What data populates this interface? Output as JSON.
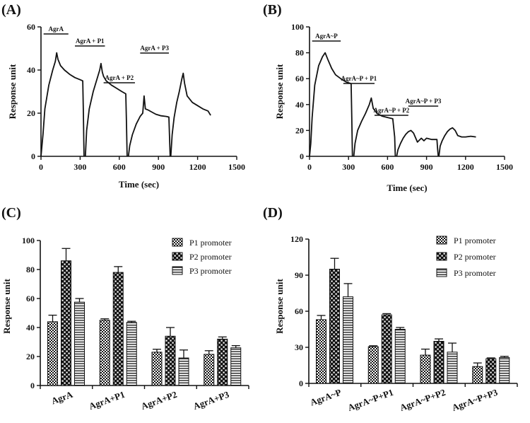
{
  "panels": {
    "a": "(A)",
    "b": "(B)",
    "c": "(C)",
    "d": "(D)"
  },
  "chart_data": [
    {
      "id": "A",
      "type": "line",
      "title": "",
      "xlabel": "Time (sec)",
      "ylabel": "Response unit",
      "xlim": [
        0,
        1500
      ],
      "ylim": [
        0,
        60
      ],
      "xticks": [
        0,
        300,
        600,
        900,
        1200,
        1500
      ],
      "yticks": [
        0,
        20,
        40,
        60
      ],
      "grid": false,
      "annotations": [
        "AgrA",
        "AgrA + P1",
        "AgrA + P2",
        "AgrA + P3"
      ],
      "segments": [
        {
          "name": "AgrA",
          "x": [
            0,
            15,
            30,
            60,
            90,
            110,
            120,
            130,
            150,
            180,
            220,
            260,
            300,
            320,
            325,
            330
          ],
          "y": [
            0,
            10,
            22,
            33,
            40,
            44,
            48,
            45,
            42,
            40,
            38,
            36.5,
            35.5,
            35,
            20,
            0
          ]
        },
        {
          "name": "AgrA + P1",
          "x": [
            340,
            350,
            370,
            400,
            430,
            450,
            460,
            470,
            480,
            500,
            540,
            580,
            620,
            650,
            655,
            660
          ],
          "y": [
            0,
            12,
            22,
            30,
            36,
            40,
            43,
            39,
            37,
            35,
            33,
            31.5,
            30,
            29,
            15,
            0
          ]
        },
        {
          "name": "AgrA + P2",
          "x": [
            670,
            680,
            700,
            730,
            760,
            780,
            790,
            800,
            820,
            850,
            880,
            920,
            960,
            980,
            985,
            990
          ],
          "y": [
            0,
            5,
            10,
            15,
            18.5,
            20,
            28,
            22,
            21.5,
            20.5,
            19.5,
            18.8,
            18.5,
            18.2,
            9,
            0
          ]
        },
        {
          "name": "AgrA + P3",
          "x": [
            995,
            1005,
            1020,
            1040,
            1060,
            1080,
            1090,
            1100,
            1120,
            1160,
            1200,
            1240,
            1280,
            1300
          ],
          "y": [
            0,
            10,
            18,
            25,
            30,
            36,
            38.5,
            34,
            28,
            25,
            23.5,
            22,
            21,
            19
          ]
        }
      ]
    },
    {
      "id": "B",
      "type": "line",
      "title": "",
      "xlabel": "Time (sec)",
      "ylabel": "Response unit",
      "xlim": [
        0,
        1500
      ],
      "ylim": [
        0,
        100
      ],
      "xticks": [
        0,
        300,
        600,
        900,
        1200,
        1500
      ],
      "yticks": [
        0,
        20,
        40,
        60,
        80,
        100
      ],
      "grid": false,
      "annotations": [
        "AgrA~P",
        "AgrA~P + P1",
        "AgrA~P + P2",
        "AgrA~P + P3"
      ],
      "segments": [
        {
          "name": "AgrA~P",
          "x": [
            0,
            10,
            20,
            40,
            70,
            100,
            120,
            140,
            170,
            200,
            240,
            280,
            310,
            320,
            325,
            330
          ],
          "y": [
            0,
            10,
            30,
            55,
            70,
            77,
            80,
            75,
            68,
            63,
            60,
            57.5,
            56.5,
            56,
            30,
            0
          ]
        },
        {
          "name": "AgrA~P + P1",
          "x": [
            340,
            350,
            370,
            400,
            430,
            460,
            475,
            490,
            520,
            560,
            600,
            640,
            655,
            660
          ],
          "y": [
            0,
            10,
            20,
            27,
            33,
            40,
            45,
            37,
            33,
            31,
            30,
            29,
            15,
            0
          ]
        },
        {
          "name": "AgrA~P + P2",
          "x": [
            670,
            680,
            700,
            720,
            740,
            760,
            780,
            800,
            830,
            860,
            880,
            900,
            940,
            980,
            985,
            990
          ],
          "y": [
            0,
            5,
            10,
            14,
            17,
            19,
            20,
            18,
            11,
            14,
            12,
            14,
            13,
            13,
            6,
            0
          ]
        },
        {
          "name": "AgrA~P + P3",
          "x": [
            995,
            1005,
            1020,
            1040,
            1060,
            1080,
            1100,
            1120,
            1140,
            1170,
            1200,
            1240,
            1280
          ],
          "y": [
            0,
            8,
            12,
            16,
            19,
            21,
            22,
            20,
            16,
            15,
            15,
            15.5,
            15
          ]
        }
      ]
    },
    {
      "id": "C",
      "type": "bar",
      "title": "",
      "xlabel": "",
      "ylabel": "Response unit",
      "ylim": [
        0,
        100
      ],
      "yticks": [
        0,
        20,
        40,
        60,
        80,
        100
      ],
      "grid": false,
      "legend": "top-right",
      "categories": [
        "AgrA",
        "AgrA+P1",
        "AgrA+P2",
        "AgrA+P3"
      ],
      "series": [
        {
          "name": "P1 promoter",
          "pattern": "checker",
          "values": [
            44,
            45,
            23,
            21.5
          ],
          "errors": [
            4.5,
            1,
            2,
            2.5
          ]
        },
        {
          "name": "P2 promoter",
          "pattern": "dots",
          "values": [
            86,
            78,
            34,
            32
          ],
          "errors": [
            8.5,
            4,
            6,
            1.5
          ]
        },
        {
          "name": "P3 promoter",
          "pattern": "hlines",
          "values": [
            57.5,
            43.5,
            19,
            26
          ],
          "errors": [
            2.5,
            0.8,
            5.5,
            1.5
          ]
        }
      ]
    },
    {
      "id": "D",
      "type": "bar",
      "title": "",
      "xlabel": "",
      "ylabel": "Response unit",
      "ylim": [
        0,
        120
      ],
      "yticks": [
        0,
        30,
        60,
        90,
        120
      ],
      "grid": false,
      "legend": "top-right",
      "categories": [
        "AgrA~P",
        "AgrA~P+P1",
        "AgrA~P+P2",
        "AgrA~P+P3"
      ],
      "series": [
        {
          "name": "P1 promoter",
          "pattern": "checker",
          "values": [
            53,
            30.5,
            23.5,
            14
          ],
          "errors": [
            3.5,
            0.8,
            5,
            3
          ]
        },
        {
          "name": "P2 promoter",
          "pattern": "dots",
          "values": [
            95,
            57,
            35,
            20.5
          ],
          "errors": [
            9,
            1,
            2,
            0.7
          ]
        },
        {
          "name": "P3 promoter",
          "pattern": "hlines",
          "values": [
            72,
            45,
            26,
            21.5
          ],
          "errors": [
            11,
            1.5,
            7.5,
            1
          ]
        }
      ]
    }
  ]
}
